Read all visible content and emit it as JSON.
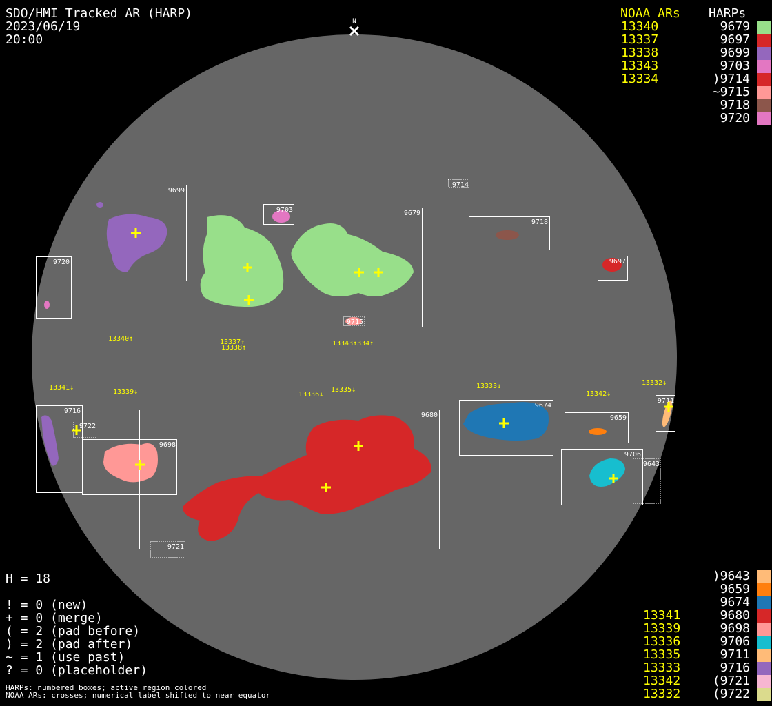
{
  "header": {
    "title": "SDO/HMI Tracked AR (HARP)",
    "date": "2023/06/19",
    "time": "20:00",
    "north_label": "N"
  },
  "legend_top": {
    "noaa_header": "NOAA ARs",
    "harp_header": "HARPs",
    "noaa": [
      "13340",
      "13337",
      "13338",
      "13343",
      "13334"
    ],
    "harps": [
      {
        "label": "9679",
        "color": "#98df8a"
      },
      {
        "label": "9697",
        "color": "#d62728"
      },
      {
        "label": "9699",
        "color": "#9467bd"
      },
      {
        "label": "9703",
        "color": "#e377c2"
      },
      {
        "label": ")9714",
        "color": "#d62728"
      },
      {
        "label": "~9715",
        "color": "#ff9896"
      },
      {
        "label": "9718",
        "color": "#8c564b"
      },
      {
        "label": "9720",
        "color": "#e377c2"
      }
    ]
  },
  "legend_bottom": {
    "noaa": [
      "",
      "",
      "",
      "13341",
      "13339",
      "13336",
      "13335",
      "13333",
      "13342",
      "13332"
    ],
    "harps": [
      {
        "label": ")9643",
        "color": "#ffbb78"
      },
      {
        "label": "9659",
        "color": "#ff7f0e"
      },
      {
        "label": "9674",
        "color": "#1f77b4"
      },
      {
        "label": "9680",
        "color": "#d62728"
      },
      {
        "label": "9698",
        "color": "#ff9896"
      },
      {
        "label": "9706",
        "color": "#17becf"
      },
      {
        "label": "9711",
        "color": "#ffbb78"
      },
      {
        "label": "9716",
        "color": "#9467bd"
      },
      {
        "label": "(9721",
        "color": "#f7b6d2"
      },
      {
        "label": "(9722",
        "color": "#dbdb8d"
      }
    ]
  },
  "stats": {
    "h": "H = 18",
    "lines": [
      "! = 0 (new)",
      "+ = 0 (merge)",
      "( = 2 (pad before)",
      ") = 2 (pad after)",
      "~ = 1 (use past)",
      "? = 0 (placeholder)"
    ]
  },
  "footer": {
    "line1": "HARPs: numbered boxes; active region colored",
    "line2": "NOAA ARs: crosses; numerical label shifted to near equator"
  },
  "disk": {
    "box_labels": {
      "b9699": "9699",
      "b9679": "9679",
      "b9703": "9703",
      "b9720": "9720",
      "b9714": "9714",
      "b9718": "9718",
      "b9697": "9697",
      "b9715": "9715",
      "b9716": "9716",
      "b9722": "9722",
      "b9698": "9698",
      "b9680": "9680",
      "b9721": "9721",
      "b9674": "9674",
      "b9659": "9659",
      "b9706": "9706",
      "b9643": "9643",
      "b9711": "9711"
    },
    "noaa_labels": {
      "n13340": "13340↑",
      "n13337": "13337↑",
      "n13338": "13338↑",
      "n13343": "13343↑334↑",
      "n13341": "13341↓",
      "n13339": "13339↓",
      "n13336": "13336↓",
      "n13335": "13335↓",
      "n13333": "13333↓",
      "n13342": "13342↓",
      "n13332": "13332↓"
    },
    "colors": {
      "disk": "#666666",
      "cross": "#ffff00",
      "box": "#ffffff"
    }
  }
}
